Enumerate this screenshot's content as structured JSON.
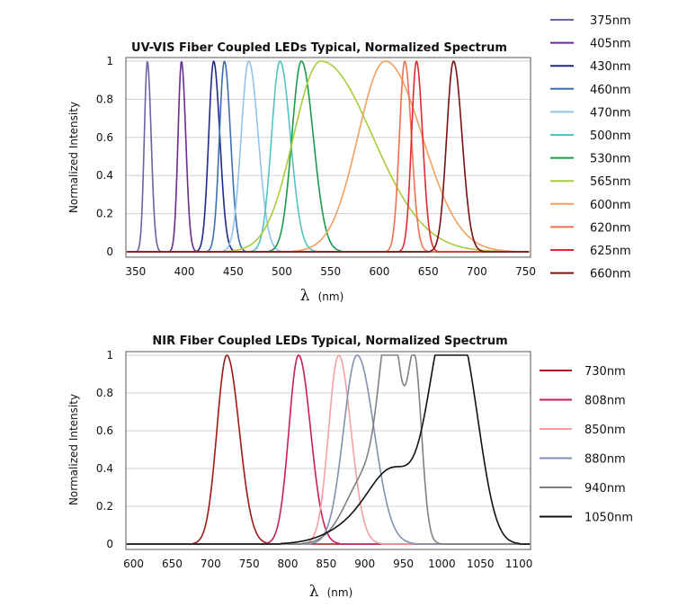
{
  "chart_data": [
    {
      "type": "line",
      "title": "UV-VIS Fiber Coupled LEDs Typical, Normalized Spectrum",
      "xlabel_symbol": "λ",
      "xlabel_unit": "(nm)",
      "ylabel": "Normalized Intensity",
      "xlim": [
        340,
        755
      ],
      "ylim": [
        0,
        1
      ],
      "xticks": [
        "350",
        "400",
        "450",
        "500",
        "550",
        "600",
        "650",
        "700",
        "750"
      ],
      "xtick_values": [
        350,
        400,
        450,
        500,
        550,
        600,
        650,
        700,
        750
      ],
      "yticks": [
        "0",
        "0.2",
        "0.4",
        "0.6",
        "0.8",
        "1"
      ],
      "ytick_values": [
        0,
        0.2,
        0.4,
        0.6,
        0.8,
        1
      ],
      "grid": "horizontal",
      "legend_position": "right",
      "series": [
        {
          "name": "375nm",
          "color": "#6a62a8",
          "peak": 362,
          "fwhm": 8
        },
        {
          "name": "405nm",
          "color": "#6a2d8f",
          "peak": 397,
          "fwhm": 9
        },
        {
          "name": "430nm",
          "color": "#1e2a8a",
          "peak": 430,
          "fwhm": 13
        },
        {
          "name": "460nm",
          "color": "#3b6fb4",
          "peak": 441,
          "fwhm": 13
        },
        {
          "name": "470nm",
          "color": "#8fc3e8",
          "peak": 466,
          "fwhm": 20
        },
        {
          "name": "500nm",
          "color": "#4fc4c0",
          "peak": 498,
          "fwhm": 22
        },
        {
          "name": "530nm",
          "color": "#1a9a4a",
          "peak": 520,
          "fwhm": 25
        },
        {
          "name": "565nm",
          "color": "#a8cc3a",
          "peak": 540,
          "fwhm": 95
        },
        {
          "name": "600nm",
          "color": "#f0a060",
          "peak": 606,
          "fwhm": 70
        },
        {
          "name": "620nm",
          "color": "#f07050",
          "peak": 626,
          "fwhm": 14
        },
        {
          "name": "625nm",
          "color": "#e02a30",
          "peak": 638,
          "fwhm": 13
        },
        {
          "name": "660nm",
          "color": "#7a1010",
          "peak": 676,
          "fwhm": 18
        }
      ]
    },
    {
      "type": "line",
      "title": "NIR Fiber Coupled LEDs Typical, Normalized Spectrum",
      "xlabel_symbol": "λ",
      "xlabel_unit": "(nm)",
      "ylabel": "Normalized Intensity",
      "xlim": [
        590,
        1115
      ],
      "ylim": [
        0,
        1
      ],
      "xticks": [
        "600",
        "650",
        "700",
        "750",
        "800",
        "850",
        "900",
        "950",
        "1000",
        "1050",
        "1100"
      ],
      "xtick_values": [
        600,
        650,
        700,
        750,
        800,
        850,
        900,
        950,
        1000,
        1050,
        1100
      ],
      "yticks": [
        "0",
        "0.2",
        "0.4",
        "0.6",
        "0.8",
        "1"
      ],
      "ytick_values": [
        0,
        0.2,
        0.4,
        0.6,
        0.8,
        1
      ],
      "grid": "horizontal",
      "legend_position": "right",
      "series": [
        {
          "name": "730nm",
          "color": "#a01818",
          "peak": 721,
          "fwhm": 33
        },
        {
          "name": "808nm",
          "color": "#c81e5a",
          "peak": 814,
          "fwhm": 32
        },
        {
          "name": "850nm",
          "color": "#f4a0a0",
          "peak": 866,
          "fwhm": 33
        },
        {
          "name": "880nm",
          "color": "#8090b0",
          "peak": 890,
          "fwhm": 45
        },
        {
          "name": "940nm",
          "color": "#808080",
          "peak": 935,
          "fwhm": 65
        },
        {
          "name": "1050nm",
          "color": "#111111",
          "peak": 1004,
          "fwhm": 90
        }
      ]
    }
  ]
}
